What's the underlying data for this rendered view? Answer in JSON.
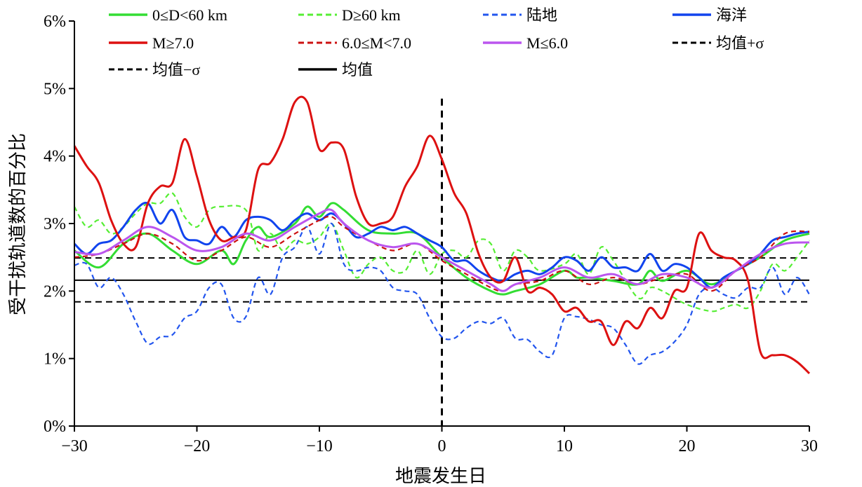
{
  "chart_data": {
    "type": "line",
    "xlabel": "地震发生日",
    "ylabel": "受干扰轨道数的百分比",
    "xlim": [
      -30,
      30
    ],
    "ylim": [
      0,
      6
    ],
    "x_ticks": [
      -30,
      -20,
      -10,
      0,
      10,
      20,
      30
    ],
    "x_tick_labels": [
      "−30",
      "−20",
      "−10",
      "0",
      "10",
      "20",
      "30"
    ],
    "y_ticks": [
      0,
      1,
      2,
      3,
      4,
      5,
      6
    ],
    "y_tick_labels": [
      "0%",
      "1%",
      "2%",
      "3%",
      "4%",
      "5%",
      "6%"
    ],
    "legend_position": "top",
    "mean": 2.16,
    "mean_plus_sigma": 2.49,
    "mean_minus_sigma": 1.84,
    "event_day": 0,
    "series": [
      {
        "name": "0≤D<60 km",
        "color": "#33dd33",
        "dash": false,
        "x": [
          -30,
          -28,
          -26,
          -24,
          -22,
          -20,
          -18,
          -17,
          -16,
          -15,
          -14,
          -12,
          -11,
          -10,
          -9,
          -8,
          -6,
          -4,
          -2,
          0,
          2,
          4,
          5,
          6,
          8,
          10,
          11,
          12,
          14,
          16,
          17,
          18,
          20,
          22,
          24,
          26,
          28,
          30
        ],
        "y": [
          2.6,
          2.35,
          2.7,
          2.85,
          2.6,
          2.4,
          2.6,
          2.4,
          2.75,
          2.95,
          2.8,
          3.0,
          3.25,
          3.1,
          3.3,
          3.2,
          2.9,
          2.85,
          2.85,
          2.5,
          2.2,
          2.0,
          1.95,
          2.0,
          2.1,
          2.3,
          2.2,
          2.2,
          2.15,
          2.1,
          2.3,
          2.15,
          2.3,
          2.1,
          2.3,
          2.5,
          2.75,
          2.85
        ]
      },
      {
        "name": "D≥60 km",
        "color": "#55ee33",
        "dash": true,
        "x": [
          -30,
          -29,
          -28,
          -27,
          -26,
          -25,
          -24,
          -23,
          -22,
          -21,
          -20,
          -19,
          -18,
          -16,
          -15,
          -14,
          -13,
          -12,
          -11,
          -10,
          -9,
          -8,
          -7,
          -6,
          -5,
          -4,
          -3,
          -2,
          -1,
          0,
          1,
          2,
          3,
          4,
          5,
          6,
          7,
          8,
          10,
          11,
          12,
          13,
          14,
          16,
          17,
          18,
          20,
          22,
          23,
          24,
          25,
          26,
          27,
          28,
          29,
          30
        ],
        "y": [
          3.25,
          2.95,
          3.05,
          2.85,
          2.95,
          3.15,
          3.3,
          3.3,
          3.45,
          3.1,
          2.95,
          3.2,
          3.25,
          3.2,
          2.6,
          2.85,
          2.6,
          2.75,
          2.7,
          2.8,
          3.0,
          2.6,
          2.2,
          2.4,
          2.5,
          2.3,
          2.3,
          2.6,
          2.25,
          2.55,
          2.6,
          2.5,
          2.75,
          2.7,
          2.3,
          2.6,
          2.5,
          2.3,
          2.4,
          2.55,
          2.25,
          2.65,
          2.45,
          1.9,
          2.05,
          2.0,
          1.8,
          1.7,
          1.75,
          1.8,
          1.75,
          2.0,
          2.4,
          2.3,
          2.5,
          2.75
        ]
      },
      {
        "name": "陆地",
        "color": "#2255ee",
        "dash": true,
        "x": [
          -30,
          -29,
          -28,
          -27,
          -26,
          -25,
          -24,
          -23,
          -22,
          -21,
          -20,
          -19,
          -18,
          -17,
          -16,
          -15,
          -14,
          -13,
          -12,
          -11,
          -10,
          -9,
          -8,
          -7,
          -6,
          -5,
          -4,
          -3,
          -2,
          -1,
          0,
          1,
          2,
          3,
          4,
          5,
          6,
          7,
          8,
          9,
          10,
          11,
          12,
          13,
          14,
          15,
          16,
          17,
          18,
          19,
          20,
          21,
          22,
          23,
          24,
          25,
          26,
          27,
          28,
          29,
          30
        ],
        "y": [
          2.38,
          2.4,
          2.05,
          2.2,
          1.95,
          1.55,
          1.22,
          1.32,
          1.35,
          1.6,
          1.7,
          2.05,
          2.1,
          1.6,
          1.62,
          2.2,
          1.95,
          2.5,
          2.65,
          2.95,
          2.55,
          3.0,
          2.4,
          2.3,
          2.35,
          2.3,
          2.05,
          2.0,
          1.95,
          1.6,
          1.32,
          1.3,
          1.45,
          1.55,
          1.52,
          1.6,
          1.3,
          1.28,
          1.1,
          1.05,
          1.6,
          1.62,
          1.58,
          1.5,
          1.45,
          1.2,
          0.92,
          1.05,
          1.1,
          1.25,
          1.5,
          1.95,
          2.05,
          1.95,
          1.9,
          2.05,
          2.05,
          2.35,
          1.95,
          2.2,
          1.95
        ]
      },
      {
        "name": "海洋",
        "color": "#1144ee",
        "dash": false,
        "x": [
          -30,
          -29,
          -28,
          -27,
          -26,
          -25,
          -24,
          -23,
          -22,
          -21,
          -20,
          -19,
          -18,
          -17,
          -16,
          -15,
          -14,
          -13,
          -12,
          -11,
          -10,
          -9,
          -8,
          -7,
          -6,
          -5,
          -4,
          -3,
          -2,
          -1,
          0,
          1,
          2,
          3,
          4,
          5,
          6,
          7,
          8,
          9,
          10,
          11,
          12,
          13,
          14,
          15,
          16,
          17,
          18,
          19,
          20,
          21,
          22,
          23,
          24,
          25,
          26,
          27,
          28,
          29,
          30
        ],
        "y": [
          2.7,
          2.55,
          2.7,
          2.75,
          2.95,
          3.2,
          3.3,
          3.0,
          3.2,
          2.8,
          2.75,
          2.7,
          2.95,
          2.8,
          3.05,
          3.1,
          3.05,
          2.9,
          3.05,
          3.15,
          3.05,
          3.15,
          3.0,
          2.8,
          2.85,
          2.95,
          2.9,
          2.95,
          2.85,
          2.75,
          2.65,
          2.45,
          2.45,
          2.3,
          2.2,
          2.15,
          2.25,
          2.3,
          2.25,
          2.35,
          2.5,
          2.45,
          2.3,
          2.5,
          2.35,
          2.35,
          2.3,
          2.55,
          2.3,
          2.4,
          2.35,
          2.2,
          2.05,
          2.2,
          2.3,
          2.4,
          2.55,
          2.75,
          2.8,
          2.85,
          2.88
        ]
      },
      {
        "name": "M≥7.0",
        "color": "#dd1111",
        "dash": false,
        "x": [
          -30,
          -29,
          -28,
          -27,
          -26,
          -25,
          -24,
          -23,
          -22,
          -21,
          -20,
          -19,
          -18,
          -17,
          -16,
          -15,
          -14,
          -13,
          -12,
          -11,
          -10,
          -9,
          -8,
          -7,
          -6,
          -5,
          -4,
          -3,
          -2,
          -1,
          0,
          1,
          2,
          3,
          4,
          5,
          6,
          7,
          8,
          9,
          10,
          11,
          12,
          13,
          14,
          15,
          16,
          17,
          18,
          19,
          20,
          21,
          22,
          23,
          24,
          25,
          26,
          27,
          28,
          29,
          30
        ],
        "y": [
          4.15,
          3.85,
          3.6,
          3.05,
          2.7,
          2.65,
          3.3,
          3.55,
          3.6,
          4.25,
          3.7,
          3.05,
          2.75,
          2.8,
          2.9,
          3.8,
          3.9,
          4.25,
          4.8,
          4.8,
          4.1,
          4.2,
          4.1,
          3.4,
          3.0,
          3.0,
          3.1,
          3.55,
          3.85,
          4.3,
          3.95,
          3.45,
          3.15,
          2.55,
          2.2,
          2.15,
          2.5,
          2.0,
          2.05,
          1.95,
          1.7,
          1.75,
          1.55,
          1.55,
          1.2,
          1.55,
          1.45,
          1.75,
          1.6,
          2.0,
          2.05,
          2.85,
          2.6,
          2.5,
          2.45,
          2.15,
          1.1,
          1.05,
          1.05,
          0.95,
          0.78
        ]
      },
      {
        "name": "6.0≤M<7.0",
        "color": "#cc1111",
        "dash": true,
        "x": [
          -30,
          -28,
          -26,
          -24,
          -22,
          -20,
          -18,
          -16,
          -14,
          -12,
          -10,
          -9,
          -8,
          -6,
          -4,
          -2,
          0,
          2,
          4,
          5,
          6,
          8,
          10,
          12,
          14,
          16,
          18,
          20,
          22,
          24,
          26,
          28,
          30
        ],
        "y": [
          2.5,
          2.55,
          2.7,
          2.85,
          2.7,
          2.45,
          2.6,
          2.8,
          2.65,
          2.85,
          3.05,
          3.1,
          2.95,
          2.75,
          2.6,
          2.7,
          2.45,
          2.25,
          2.05,
          2.0,
          2.1,
          2.15,
          2.3,
          2.1,
          2.2,
          2.1,
          2.2,
          2.25,
          2.0,
          2.3,
          2.5,
          2.85,
          2.88
        ]
      },
      {
        "name": "M≤6.0",
        "color": "#bb55ee",
        "dash": false,
        "x": [
          -30,
          -28,
          -26,
          -24,
          -22,
          -20,
          -18,
          -16,
          -14,
          -12,
          -10,
          -9,
          -8,
          -6,
          -4,
          -2,
          0,
          2,
          4,
          5,
          6,
          8,
          10,
          12,
          14,
          16,
          18,
          20,
          22,
          24,
          26,
          28,
          30
        ],
        "y": [
          2.58,
          2.55,
          2.75,
          2.95,
          2.8,
          2.6,
          2.65,
          2.85,
          2.75,
          2.95,
          3.15,
          3.2,
          3.0,
          2.75,
          2.65,
          2.7,
          2.5,
          2.3,
          2.1,
          2.0,
          2.1,
          2.2,
          2.35,
          2.2,
          2.25,
          2.1,
          2.25,
          2.2,
          2.05,
          2.3,
          2.55,
          2.7,
          2.72
        ]
      }
    ],
    "reference_lines": [
      {
        "name": "均值+σ",
        "value": 2.49,
        "color": "#000000",
        "dash": true
      },
      {
        "name": "均值−σ",
        "value": 1.84,
        "color": "#000000",
        "dash": true
      },
      {
        "name": "均值",
        "value": 2.16,
        "color": "#000000",
        "dash": false
      }
    ]
  }
}
